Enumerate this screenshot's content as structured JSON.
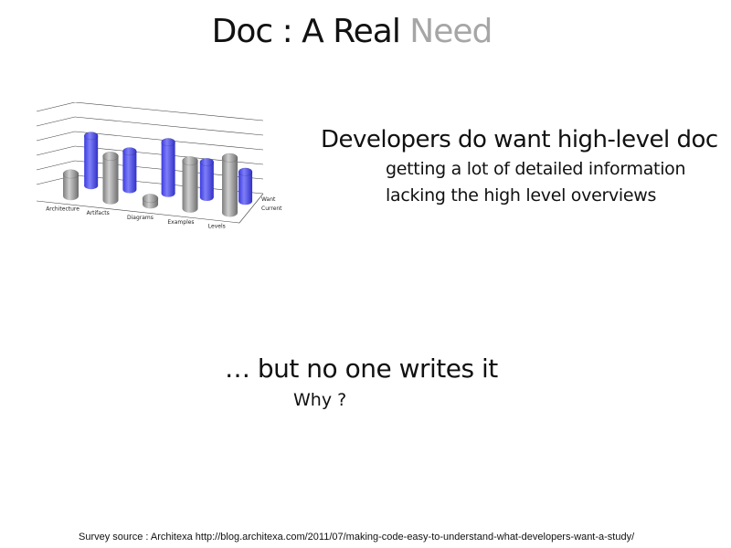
{
  "title": {
    "main": "Doc : A Real",
    "accent": "Need"
  },
  "headline": "Developers do want high-level doc",
  "subpoints": [
    "getting a lot of detailed information",
    "lacking the high level overviews"
  ],
  "but_line": "… but no one writes it",
  "why": "Why ?",
  "source": "Survey source : Architexa http://blog.architexa.com/2011/07/making-code-easy-to-understand-what-developers-want-a-study/",
  "colors": {
    "want": "#5b5bf5",
    "current": "#a3a3a3",
    "title_accent": "#a6a6a6"
  },
  "chart_data": {
    "type": "bar",
    "style": "3d-cylinder",
    "categories": [
      "Architecture",
      "Artifacts",
      "Diagrams",
      "Examples",
      "Levels"
    ],
    "series": [
      {
        "name": "Current",
        "values": [
          30,
          60,
          8,
          65,
          75
        ]
      },
      {
        "name": "Want",
        "values": [
          68,
          52,
          70,
          48,
          40
        ]
      }
    ],
    "legend": [
      "Want",
      "Current"
    ],
    "ylim": [
      0,
      100
    ],
    "grid": true
  }
}
